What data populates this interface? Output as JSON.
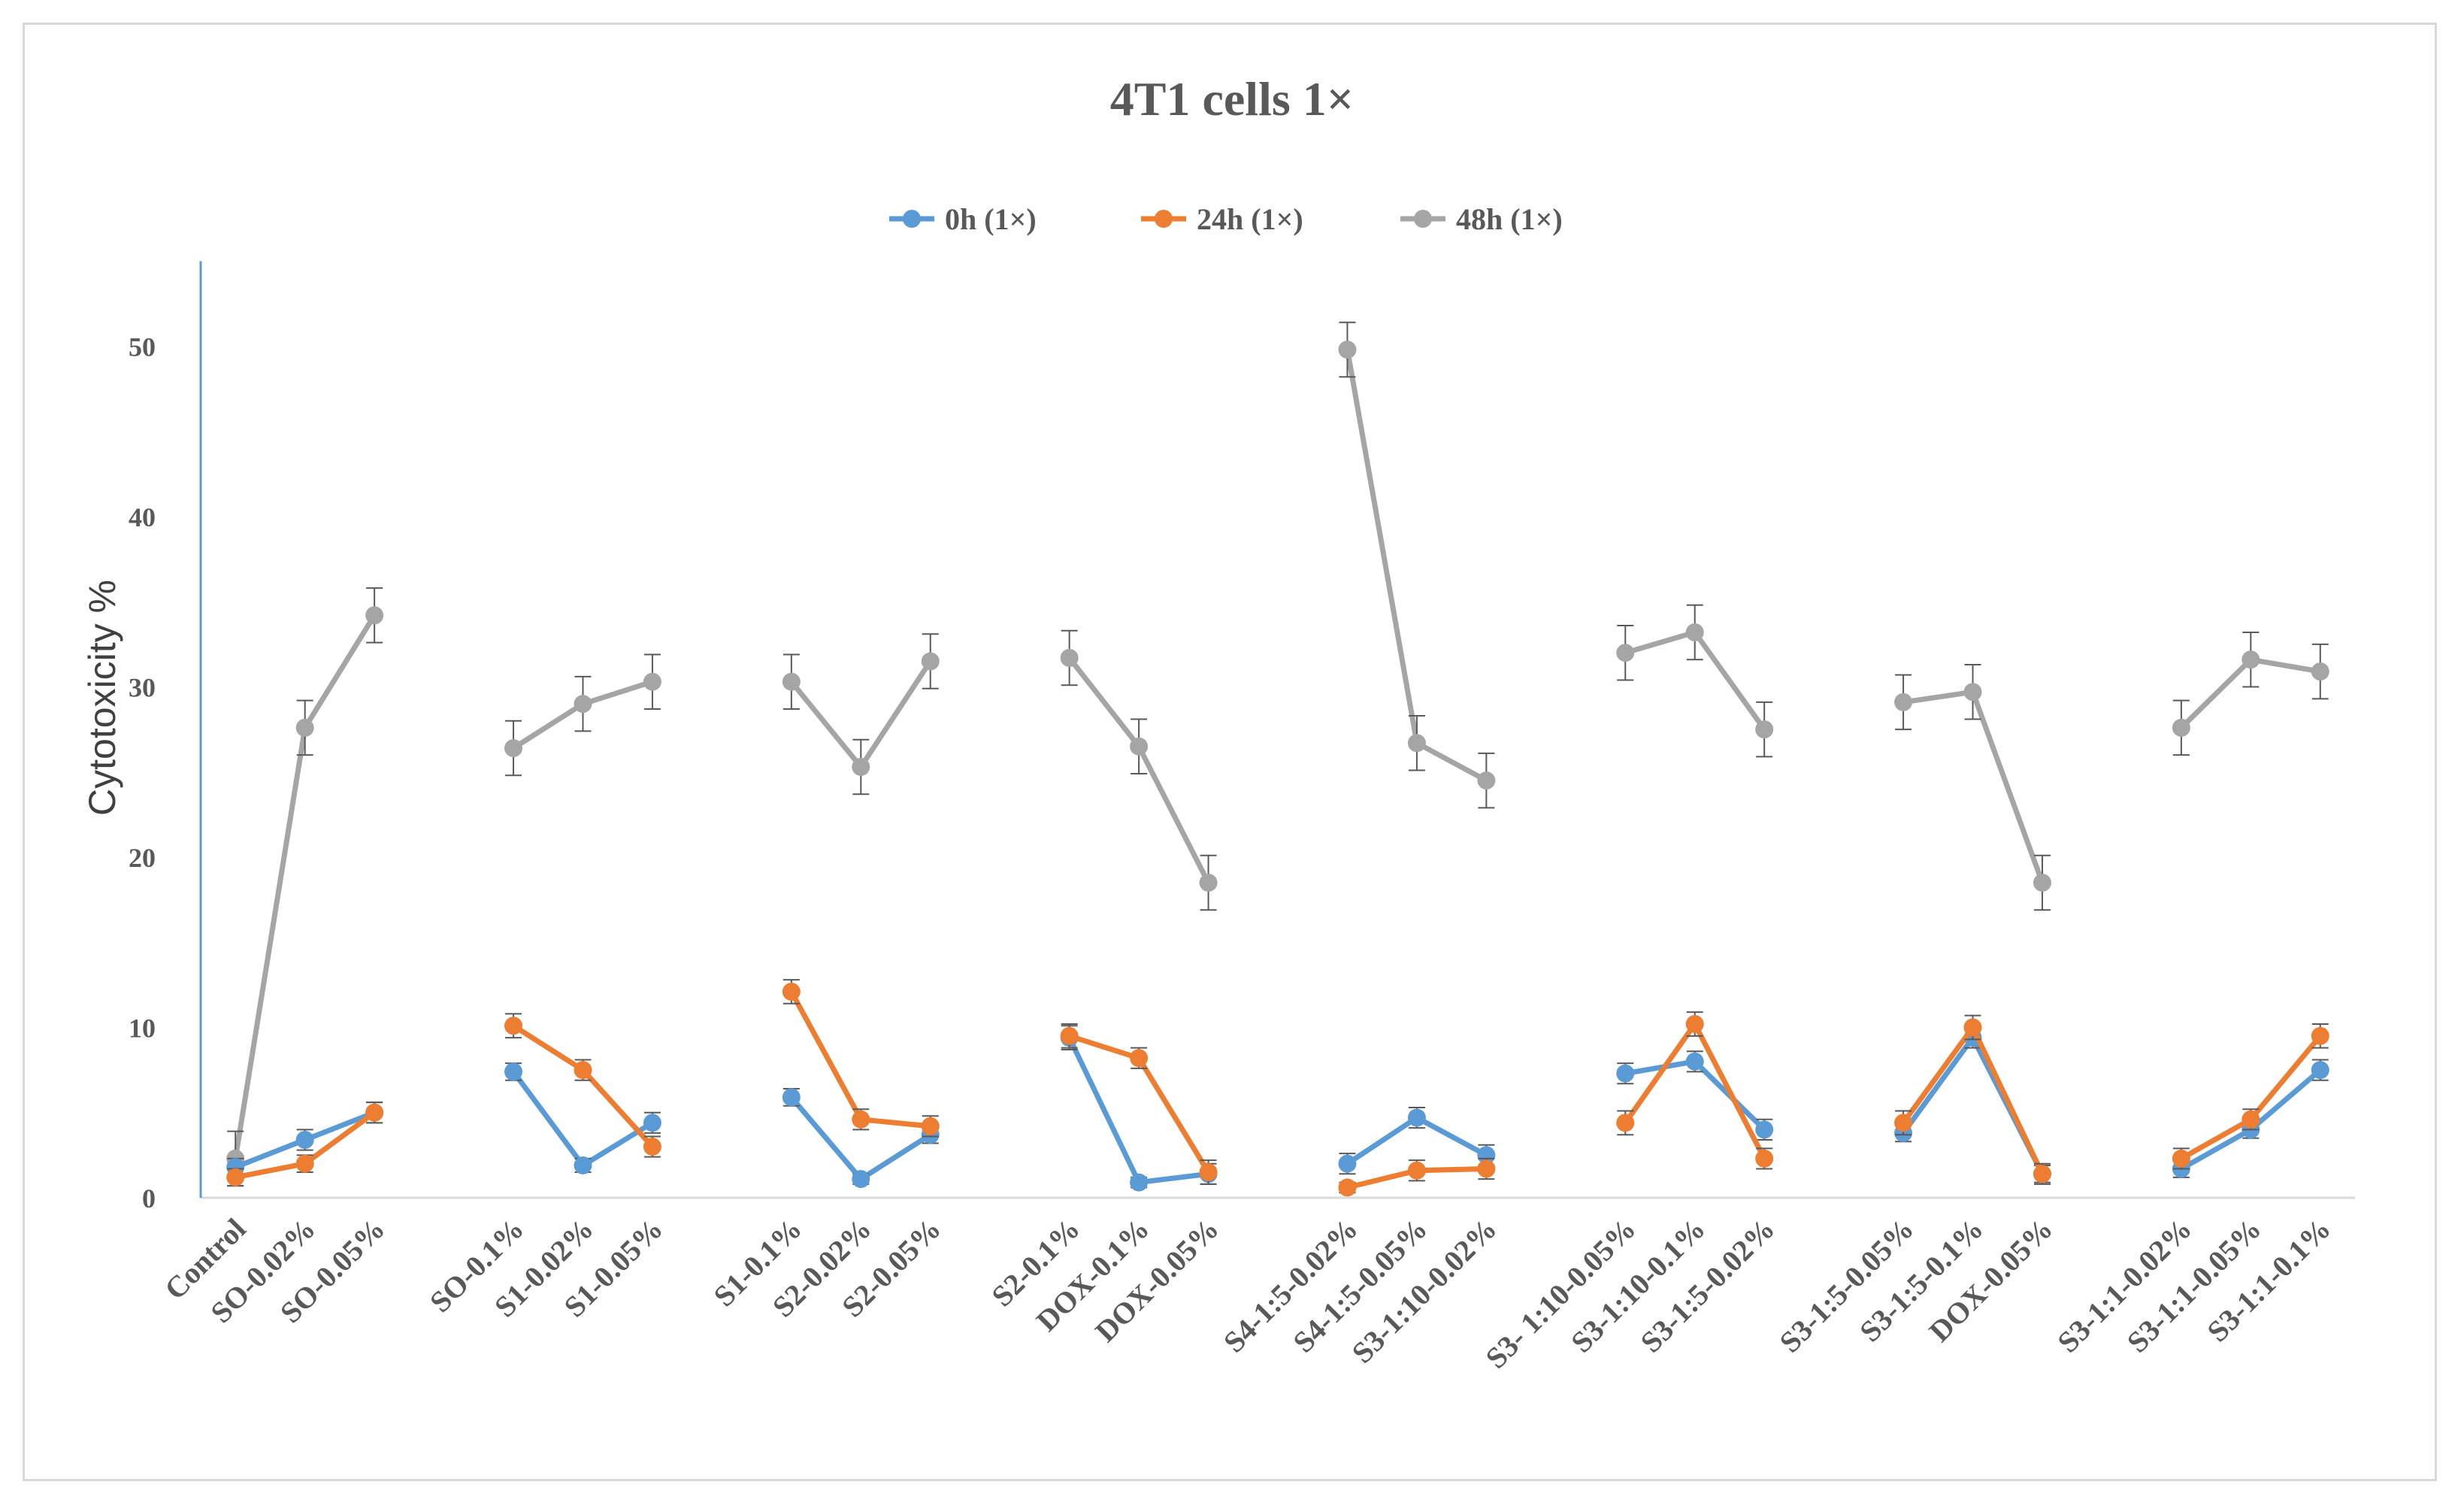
{
  "chart_data": {
    "type": "line",
    "title": "4T1 cells 1×",
    "xlabel": "",
    "ylabel": "Cytotoxicity %",
    "ylim": [
      0,
      55
    ],
    "yticks": [
      0,
      10,
      20,
      30,
      40,
      50
    ],
    "grid": false,
    "legend_position": "top",
    "groups": [
      [
        "Control",
        "SO-0.02%",
        "SO-0.05%"
      ],
      [
        "SO-0.1%",
        "S1-0.02%",
        "S1-0.05%"
      ],
      [
        "S1-0.1%",
        "S2-0.02%",
        "S2-0.05%"
      ],
      [
        "S2-0.1%",
        "DOX-0.1%",
        "DOX-0.05%"
      ],
      [
        "S4-1:5-0.02%",
        "S4-1:5-0.05%",
        "S3-1:10-0.02%"
      ],
      [
        "S3- 1:10-0.05%",
        "S3-1:10-0.1%",
        "S3-1:5-0.02%"
      ],
      [
        "S3-1:5-0.05%",
        "S3-1:5-0.1%",
        "DOX-0.05%"
      ],
      [
        "S3-1:1-0.02%",
        "S3-1:1-0.05%",
        "S3-1:1-0.1%"
      ]
    ],
    "series": [
      {
        "name": "0h (1×)",
        "color": "#5b9bd5",
        "values": [
          [
            1.8,
            3.4,
            5.0
          ],
          [
            7.4,
            1.9,
            4.4
          ],
          [
            5.9,
            1.1,
            3.7
          ],
          [
            9.4,
            0.9,
            1.4
          ],
          [
            2.0,
            4.7,
            2.5
          ],
          [
            7.3,
            8.0,
            4.0
          ],
          [
            3.8,
            9.4,
            1.4
          ],
          [
            1.7,
            4.0,
            7.5
          ]
        ],
        "errors": [
          [
            0.5,
            0.6,
            0.6
          ],
          [
            0.5,
            0.4,
            0.6
          ],
          [
            0.5,
            0.3,
            0.5
          ],
          [
            0.7,
            0.3,
            0.6
          ],
          [
            0.6,
            0.6,
            0.6
          ],
          [
            0.6,
            0.6,
            0.6
          ],
          [
            0.5,
            0.6,
            0.5
          ],
          [
            0.5,
            0.5,
            0.6
          ]
        ]
      },
      {
        "name": "24h (1×)",
        "color": "#ed7d31",
        "values": [
          [
            1.2,
            2.0,
            5.0
          ],
          [
            10.1,
            7.5,
            3.0
          ],
          [
            12.1,
            4.6,
            4.2
          ],
          [
            9.5,
            8.2,
            1.5
          ],
          [
            0.6,
            1.6,
            1.7
          ],
          [
            4.4,
            10.2,
            2.3
          ],
          [
            4.4,
            10.0,
            1.4
          ],
          [
            2.3,
            4.6,
            9.5
          ]
        ],
        "errors": [
          [
            0.5,
            0.5,
            0.6
          ],
          [
            0.7,
            0.6,
            0.6
          ],
          [
            0.7,
            0.6,
            0.6
          ],
          [
            0.7,
            0.6,
            0.7
          ],
          [
            0.3,
            0.6,
            0.6
          ],
          [
            0.7,
            0.7,
            0.6
          ],
          [
            0.7,
            0.7,
            0.6
          ],
          [
            0.6,
            0.6,
            0.7
          ]
        ]
      },
      {
        "name": "48h (1×)",
        "color": "#a5a5a5",
        "values": [
          [
            2.3,
            27.6,
            34.2
          ],
          [
            26.4,
            29.0,
            30.3
          ],
          [
            30.3,
            25.3,
            31.5
          ],
          [
            31.7,
            26.5,
            18.5
          ],
          [
            49.8,
            26.7,
            24.5
          ],
          [
            32.0,
            33.2,
            27.5
          ],
          [
            29.1,
            29.7,
            18.5
          ],
          [
            27.6,
            31.6,
            30.9
          ]
        ],
        "errors": [
          [
            1.6,
            1.6,
            1.6
          ],
          [
            1.6,
            1.6,
            1.6
          ],
          [
            1.6,
            1.6,
            1.6
          ],
          [
            1.6,
            1.6,
            1.6
          ],
          [
            1.6,
            1.6,
            1.6
          ],
          [
            1.6,
            1.6,
            1.6
          ],
          [
            1.6,
            1.6,
            1.6
          ],
          [
            1.6,
            1.6,
            1.6
          ]
        ]
      }
    ]
  }
}
